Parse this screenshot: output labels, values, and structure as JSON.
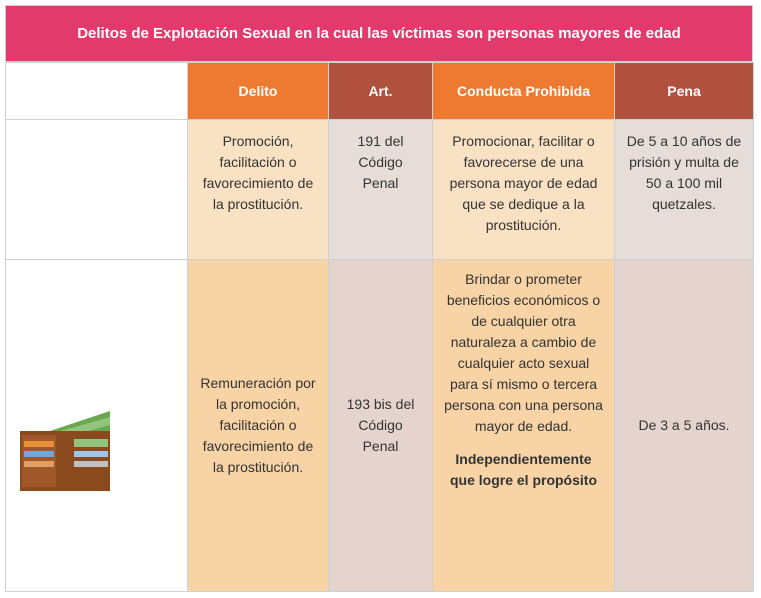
{
  "header": {
    "title": "Delitos de Explotación Sexual en la cual las víctimas son personas mayores de edad"
  },
  "table": {
    "columns": [
      "Delito",
      "Art.",
      "Conducta Prohibida",
      "Pena"
    ],
    "rows": [
      [
        "Promoción, facilitación o favorecimiento de la prostitución.",
        "191 del Código Penal",
        "Promocionar, facilitar o favorecerse de una persona mayor de edad que se dedique a la prostitución.",
        "De 5 a 10 años de prisión y multa de 50 a 100 mil quetzales."
      ],
      [
        "Remuneración por la promoción, facilitación o favorecimiento de la prostitución.",
        "193 bis del Código Penal",
        "Brindar o prometer beneficios económicos o de cualquier otra naturaleza a cambio de cualquier acto sexual para sí mismo o tercera persona con una persona mayor de edad.",
        "De 3 a 5 años."
      ]
    ],
    "note": "Independientemente que logre el propósito"
  }
}
